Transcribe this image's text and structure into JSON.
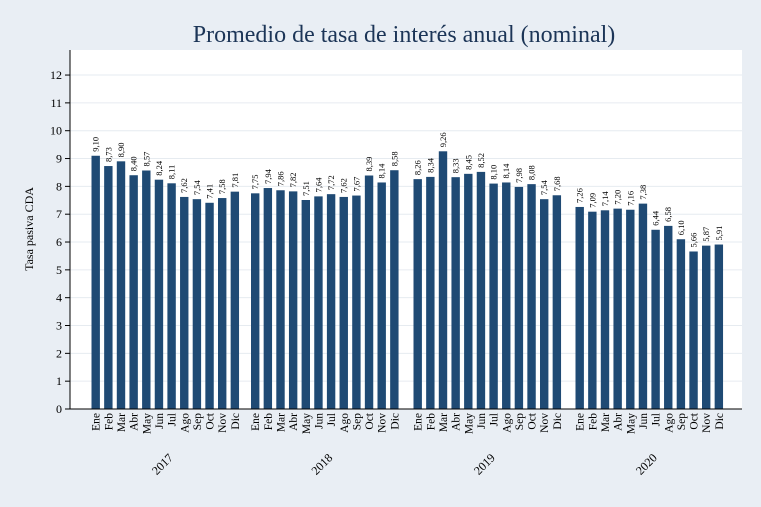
{
  "colors": {
    "background": "#e9eef4",
    "plot_background": "#ffffff",
    "bar": "#1f4a74",
    "title": "#1c3557",
    "grid": "#e6ebf0"
  },
  "chart_data": {
    "type": "bar",
    "title": "Promedio de tasa de interés anual (nominal)",
    "xlabel": "",
    "ylabel": "Tasa pasiva CDA",
    "ylim": [
      0,
      12.9
    ],
    "yticks": [
      "0",
      "1",
      "2",
      "3",
      "4",
      "5",
      "6",
      "7",
      "8",
      "9",
      "10",
      "11",
      "12"
    ],
    "grid": true,
    "months": [
      "Ene",
      "Feb",
      "Mar",
      "Abr",
      "May",
      "Jun",
      "Jul",
      "Ago",
      "Sep",
      "Oct",
      "Nov",
      "Dic"
    ],
    "groups": [
      {
        "year": "2017",
        "values": [
          9.1,
          8.73,
          8.9,
          8.4,
          8.57,
          8.24,
          8.11,
          7.62,
          7.54,
          7.41,
          7.58,
          7.81
        ],
        "labels": [
          "9,10",
          "8,73",
          "8,90",
          "8,40",
          "8,57",
          "8,24",
          "8,11",
          "7,62",
          "7,54",
          "7,41",
          "7,58",
          "7,81"
        ]
      },
      {
        "year": "2018",
        "values": [
          7.75,
          7.94,
          7.86,
          7.82,
          7.51,
          7.64,
          7.72,
          7.62,
          7.67,
          8.39,
          8.14,
          8.58
        ],
        "labels": [
          "7,75",
          "7,94",
          "7,86",
          "7,82",
          "7,51",
          "7,64",
          "7,72",
          "7,62",
          "7,67",
          "8,39",
          "8,14",
          "8,58"
        ]
      },
      {
        "year": "2019",
        "values": [
          8.26,
          8.34,
          9.26,
          8.33,
          8.45,
          8.52,
          8.1,
          8.14,
          7.98,
          8.08,
          7.54,
          7.68
        ],
        "labels": [
          "8,26",
          "8,34",
          "9,26",
          "8,33",
          "8,45",
          "8,52",
          "8,10",
          "8,14",
          "7,98",
          "8,08",
          "7,54",
          "7,68"
        ]
      },
      {
        "year": "2020",
        "values": [
          7.26,
          7.09,
          7.14,
          7.2,
          7.16,
          7.38,
          6.44,
          6.58,
          6.1,
          5.66,
          5.87,
          5.91
        ],
        "labels": [
          "7,26",
          "7,09",
          "7,14",
          "7,20",
          "7,16",
          "7,38",
          "6,44",
          "6,58",
          "6,10",
          "5,66",
          "5,87",
          "5,91"
        ]
      }
    ]
  }
}
